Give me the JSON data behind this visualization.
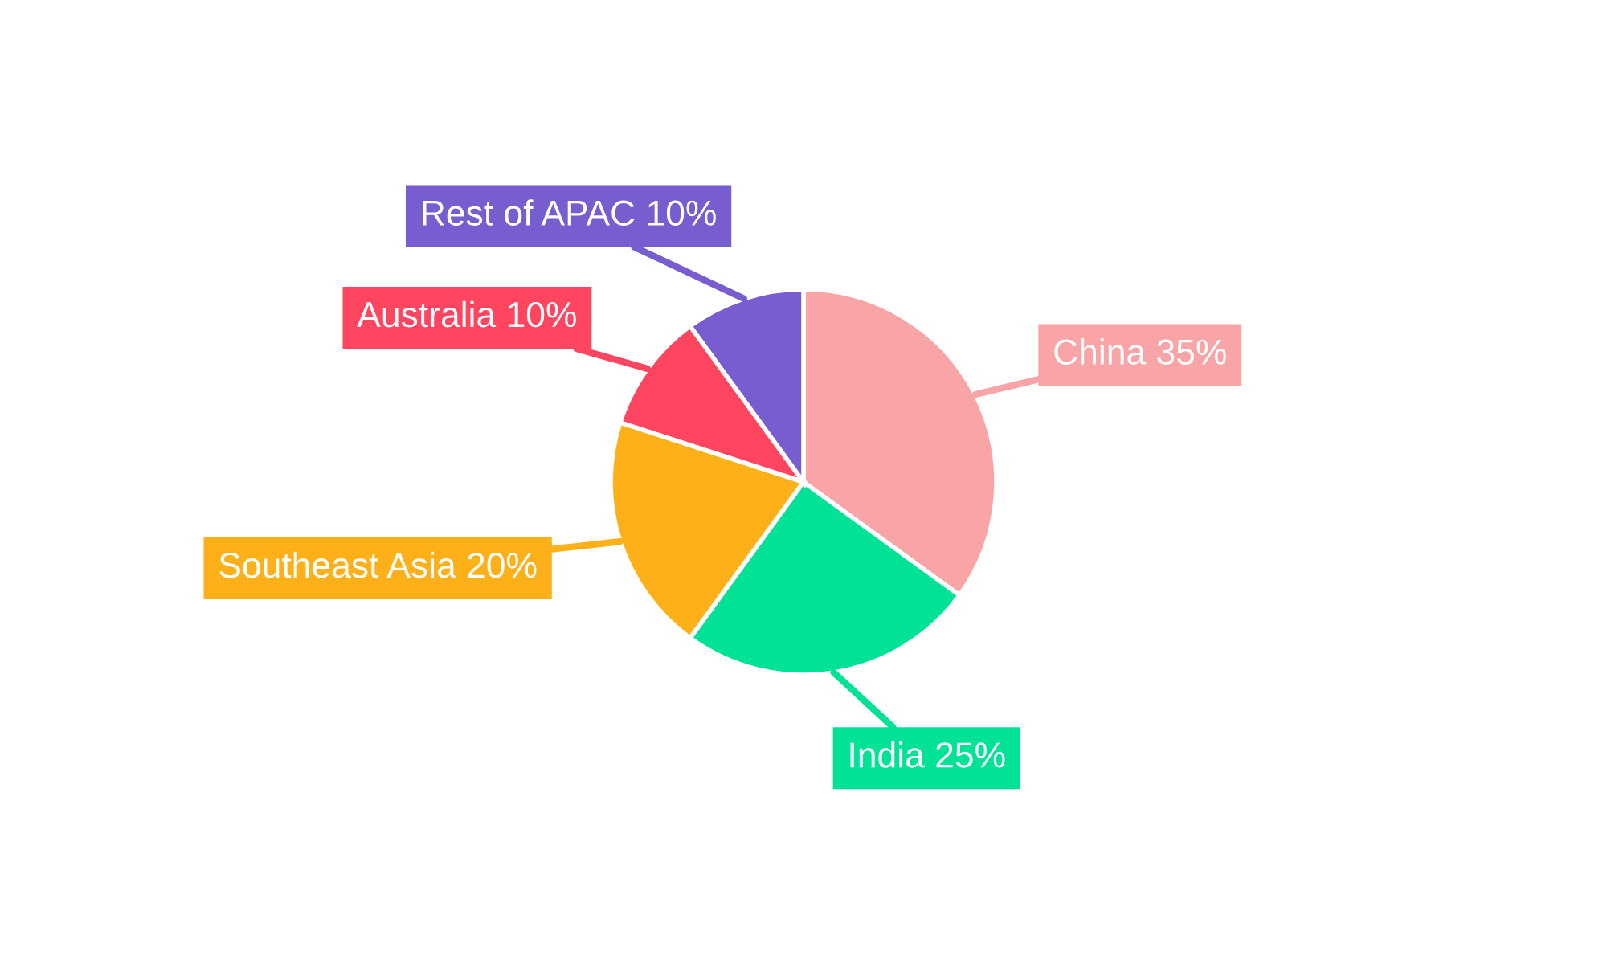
{
  "chart_data": {
    "type": "pie",
    "categories": [
      "China",
      "India",
      "Southeast Asia",
      "Australia",
      "Rest of APAC"
    ],
    "values": [
      35,
      25,
      20,
      10,
      10
    ],
    "value_labels": [
      "35%",
      "25%",
      "20%",
      "10%",
      "10%"
    ],
    "colors": [
      "#f9a5a7",
      "#00e396",
      "#feb019",
      "#ff4560",
      "#775dd0"
    ],
    "legend": false
  }
}
